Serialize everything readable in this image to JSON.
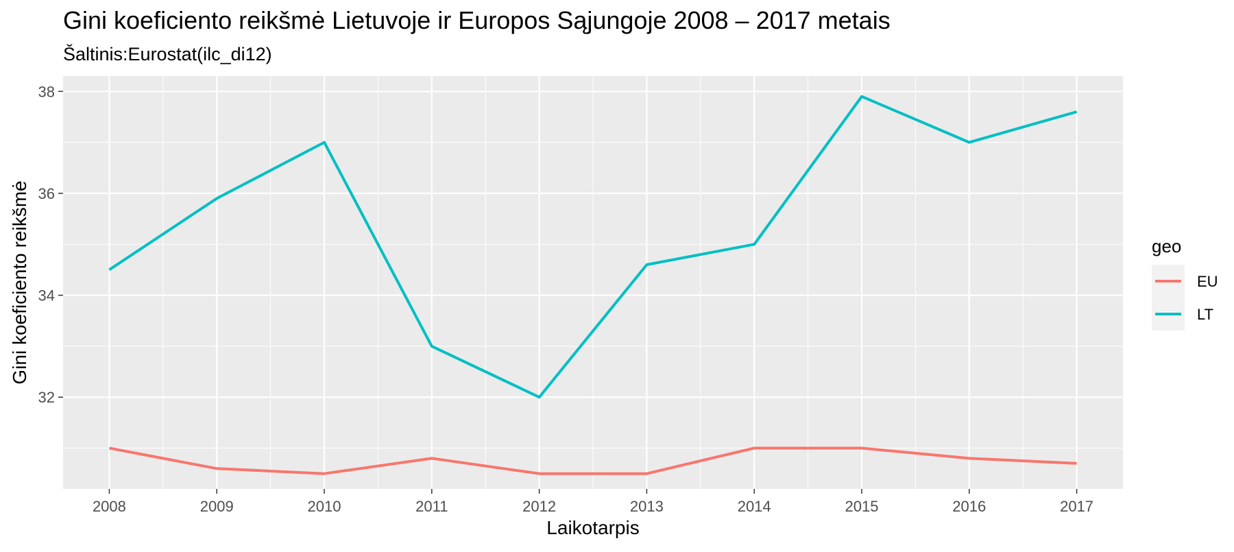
{
  "chart_data": {
    "type": "line",
    "title": "Gini koeficiento reikšmė Lietuvoje ir Europos Sąjungoje 2008 – 2017 metais",
    "subtitle": "Šaltinis:Eurostat(ilc_di12)",
    "xlabel": "Laikotarpis",
    "ylabel": "Gini koeficiento reikšmė",
    "x": [
      2008,
      2009,
      2010,
      2011,
      2012,
      2013,
      2014,
      2015,
      2016,
      2017
    ],
    "xlim": [
      2007.57,
      2017.43
    ],
    "ylim": [
      30.2,
      38.3
    ],
    "yticks": [
      32,
      34,
      36,
      38
    ],
    "grid": true,
    "legend": {
      "title": "geo",
      "position": "right"
    },
    "series": [
      {
        "name": "EU",
        "color": "#F8766D",
        "values": [
          31.0,
          30.6,
          30.5,
          30.8,
          30.5,
          30.5,
          31.0,
          31.0,
          30.8,
          30.7
        ]
      },
      {
        "name": "LT",
        "color": "#00BFC4",
        "values": [
          34.5,
          35.9,
          37.0,
          33.0,
          32.0,
          34.6,
          35.0,
          37.9,
          37.0,
          37.6
        ]
      }
    ],
    "panel_background": "#EBEBEB",
    "grid_color": "#FFFFFF"
  }
}
